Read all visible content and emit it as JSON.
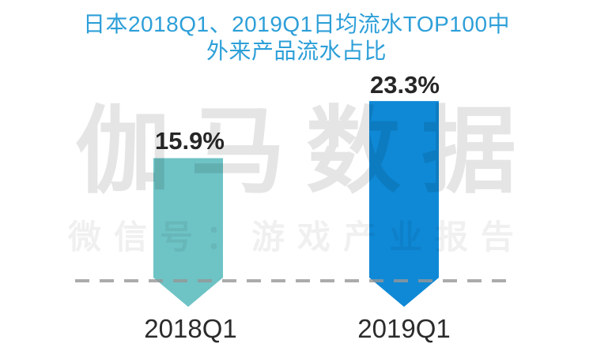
{
  "title": {
    "line1": "日本2018Q1、2019Q1日均流水TOP100中",
    "line2": "外来产品流水占比"
  },
  "watermark": {
    "brand": "伽马数据",
    "subtitle": "微信号：游戏产业报告"
  },
  "chart_data": {
    "type": "bar",
    "title": "日本2018Q1、2019Q1日均流水TOP100中外来产品流水占比",
    "categories": [
      "2018Q1",
      "2019Q1"
    ],
    "values": [
      15.9,
      23.3
    ],
    "value_labels": [
      "15.9%",
      "23.3%"
    ],
    "xlabel": "",
    "ylabel": "",
    "ylim": [
      0,
      25
    ],
    "unit": "%",
    "bar_shape": "downward-arrow",
    "bar_colors": [
      "#6ec3c5",
      "#0f89d6"
    ],
    "baseline_style": "dashed",
    "grid": false,
    "legend": false
  },
  "colors": {
    "background": "#ffffff",
    "title_text": "#2d9fd8",
    "value_label_text": "#262626",
    "category_label_text": "#2b2b2b",
    "dashed_line": "#ababab",
    "bar_2018q1": "#6ec3c5",
    "bar_2019q1": "#0f89d6"
  }
}
